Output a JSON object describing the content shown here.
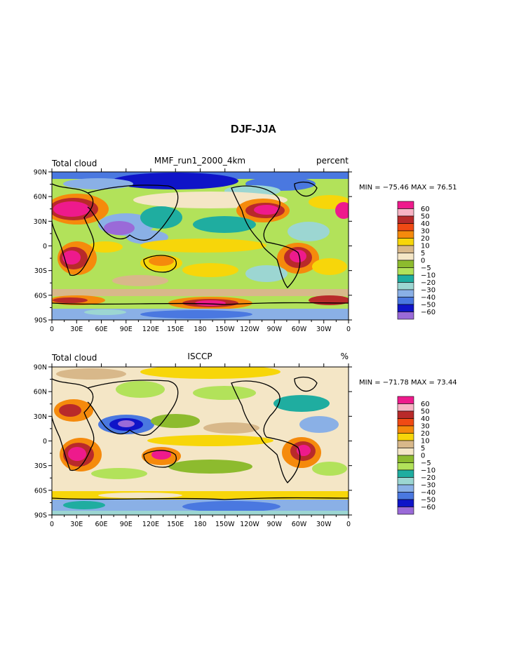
{
  "title": "DJF-JJA",
  "panels": [
    {
      "left_label": "Total cloud",
      "center_label": "MMF_run1_2000_4km",
      "right_label": "percent",
      "min_max_text": "MIN = −75.46 MAX =   76.51"
    },
    {
      "left_label": "Total cloud",
      "center_label": "ISCCP",
      "right_label": "%",
      "min_max_text": "MIN = −71.78 MAX =   73.44"
    }
  ],
  "lat_ticks": [
    "90N",
    "60N",
    "30N",
    "0",
    "30S",
    "60S",
    "90S"
  ],
  "lon_ticks": [
    "0",
    "30E",
    "60E",
    "90E",
    "120E",
    "150E",
    "180",
    "150W",
    "120W",
    "90W",
    "60W",
    "30W",
    "0"
  ],
  "colorbar": {
    "labels": [
      "60",
      "50",
      "40",
      "30",
      "20",
      "10",
      "5",
      "0",
      "−5",
      "−10",
      "−20",
      "−30",
      "−40",
      "−50",
      "−60"
    ],
    "colors": [
      "#ee1a8c",
      "#f7b3c4",
      "#b82a2a",
      "#f04a14",
      "#f58a0c",
      "#f7d60a",
      "#d8b88a",
      "#f4e6c6",
      "#8dbb2e",
      "#b2e25a",
      "#1fada0",
      "#9cd6d2",
      "#8ab0e6",
      "#4a78e0",
      "#0f14c8",
      "#9a6ad8"
    ]
  }
}
